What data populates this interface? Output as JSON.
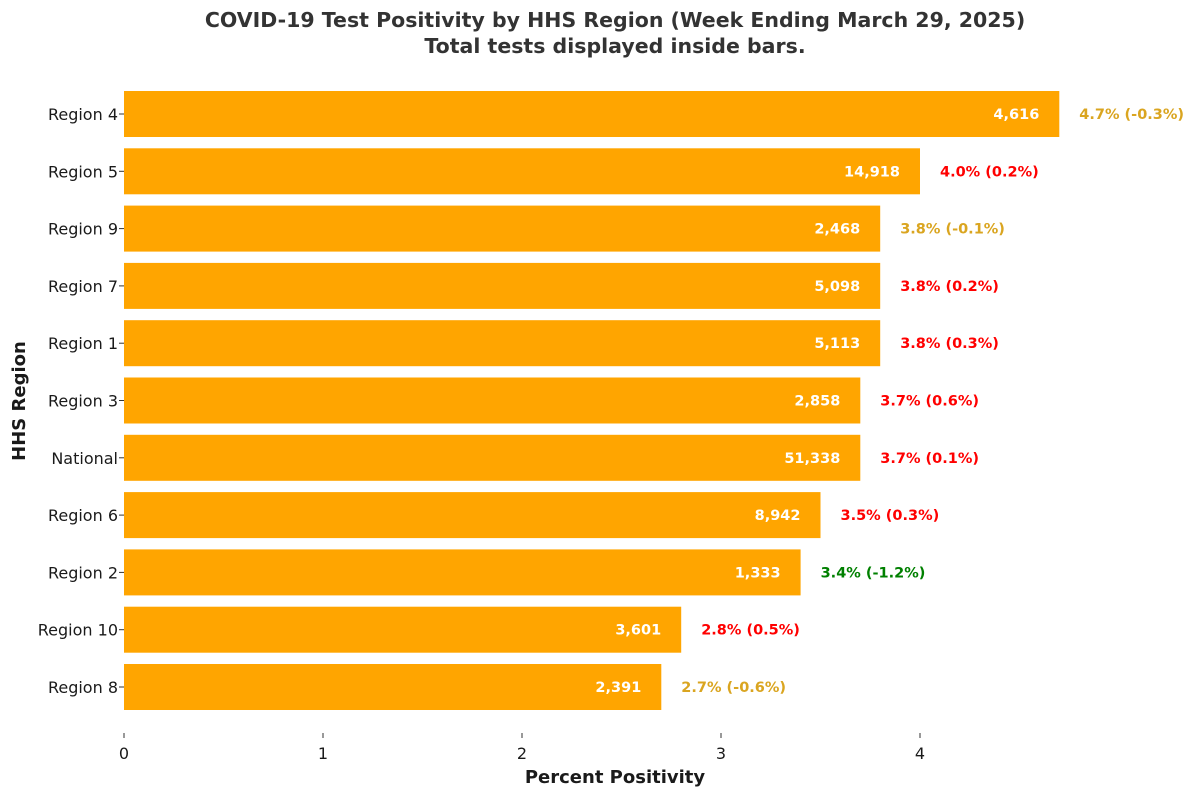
{
  "chart_data": {
    "type": "bar",
    "orientation": "horizontal",
    "title": "COVID-19 Test Positivity by HHS Region (Week Ending March 29, 2025)",
    "subtitle": "Total tests displayed inside bars.",
    "xlabel": "Percent Positivity",
    "ylabel": "HHS Region",
    "xlim": [
      0,
      4.7
    ],
    "x_ticks": [
      "0",
      "1",
      "2",
      "3",
      "4"
    ],
    "grid": false,
    "bar_color": "#FFA500",
    "categories": [
      "Region 4",
      "Region 5",
      "Region 9",
      "Region 7",
      "Region 1",
      "Region 3",
      "National",
      "Region 6",
      "Region 2",
      "Region 10",
      "Region 8"
    ],
    "values": [
      4.7,
      4.0,
      3.8,
      3.8,
      3.8,
      3.7,
      3.7,
      3.5,
      3.4,
      2.8,
      2.7
    ],
    "total_tests": [
      "4,616",
      "14,918",
      "2,468",
      "5,098",
      "5,113",
      "2,858",
      "51,338",
      "8,942",
      "1,333",
      "3,601",
      "2,391"
    ],
    "change_labels": [
      "4.7% (-0.3%)",
      "4.0% (0.2%)",
      "3.8% (-0.1%)",
      "3.8% (0.2%)",
      "3.8% (0.3%)",
      "3.7% (0.6%)",
      "3.7% (0.1%)",
      "3.5% (0.3%)",
      "3.4% (-1.2%)",
      "2.8% (0.5%)",
      "2.7% (-0.6%)"
    ],
    "change_label_colors": [
      "#DAA520",
      "#FF0000",
      "#DAA520",
      "#FF0000",
      "#FF0000",
      "#FF0000",
      "#FF0000",
      "#FF0000",
      "#008000",
      "#FF0000",
      "#DAA520"
    ]
  }
}
